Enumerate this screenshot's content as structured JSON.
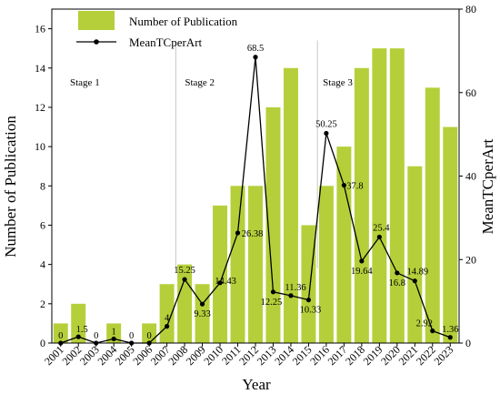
{
  "chart_data": {
    "type": "bar",
    "categories": [
      "2001",
      "2002",
      "2003",
      "2004",
      "2005",
      "2006",
      "2007",
      "2008",
      "2009",
      "2010",
      "2011",
      "2012",
      "2013",
      "2014",
      "2015",
      "2016",
      "2017",
      "2018",
      "2019",
      "2020",
      "2021",
      "2022",
      "2023"
    ],
    "series": [
      {
        "name": "Number of Publication",
        "type": "bar",
        "axis": "left",
        "color": "#b5cf3a",
        "values": [
          1,
          2,
          0,
          1,
          0,
          1,
          3,
          4,
          3,
          7,
          8,
          8,
          12,
          14,
          6,
          8,
          10,
          14,
          15,
          15,
          9,
          13,
          11
        ]
      },
      {
        "name": "MeanTCperArt",
        "type": "line",
        "axis": "right",
        "color": "#000000",
        "values": [
          0,
          1.5,
          0,
          1,
          0,
          0,
          4,
          15.25,
          9.33,
          14.43,
          26.38,
          68.5,
          12.25,
          11.36,
          10.33,
          50.25,
          37.8,
          19.64,
          25.4,
          16.8,
          14.89,
          2.92,
          1.36
        ],
        "labels": [
          "0",
          "1.5",
          "0",
          "1",
          "0",
          "0",
          "4",
          "15.25",
          "9.33",
          "14.43",
          "26.38",
          "68.5",
          "12.25",
          "11.36",
          "10.33",
          "50.25",
          "37.8",
          "19.64",
          "25.4",
          "16.8",
          "14.89",
          "2.92",
          "1.36"
        ]
      }
    ],
    "xlabel": "Year",
    "ylabel": "Number of Publication",
    "y2label": "MeanTCperArt",
    "ylim": [
      0,
      17
    ],
    "yticks": [
      0,
      2,
      4,
      6,
      8,
      10,
      12,
      14,
      16
    ],
    "y2lim": [
      0,
      80
    ],
    "y2ticks": [
      0,
      20,
      40,
      60,
      80
    ],
    "stages": [
      "Stage 1",
      "Stage 2",
      "Stage 3"
    ],
    "stage_dividers_after": [
      "2007",
      "2015"
    ],
    "legend_position": "top-left",
    "grid": false
  }
}
